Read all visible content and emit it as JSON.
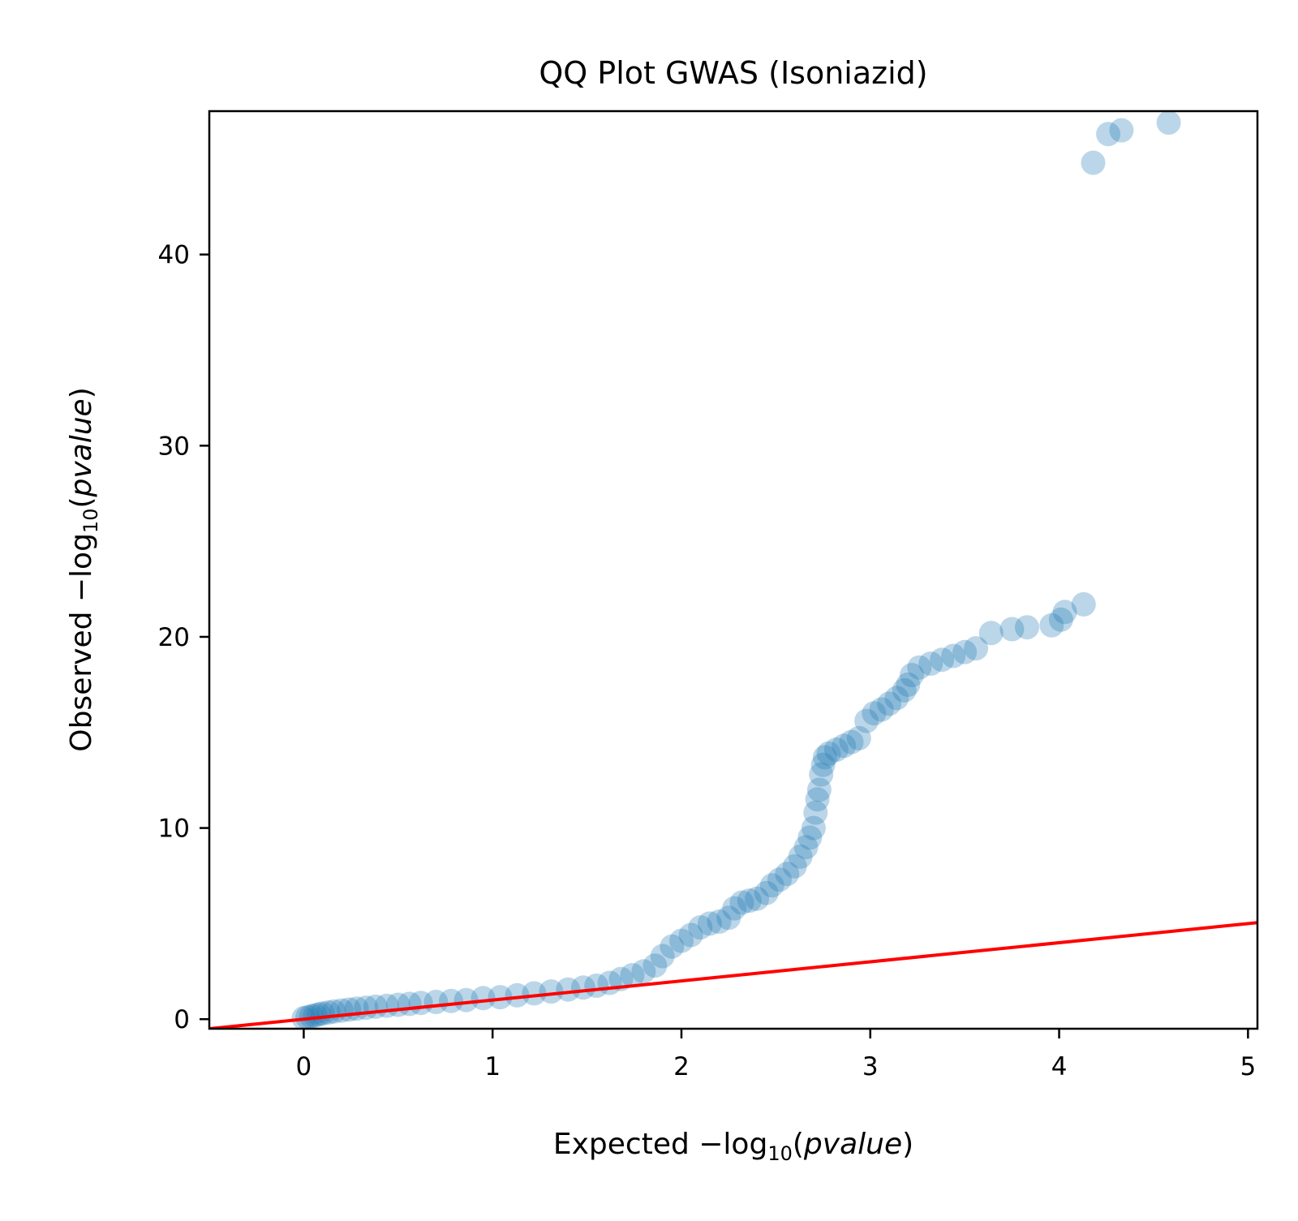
{
  "chart_data": {
    "type": "scatter",
    "title": "QQ Plot GWAS (Isoniazid)",
    "xlabel": {
      "prefix": "Expected −log",
      "subscript": "10",
      "paren_open": "(",
      "var": "pvalue",
      "paren_close": ")"
    },
    "ylabel": {
      "prefix": "Observed −log",
      "subscript": "10",
      "paren_open": "(",
      "var": "pvalue",
      "paren_close": ")"
    },
    "xlim": [
      -0.5,
      5.05
    ],
    "ylim": [
      -0.5,
      47.5
    ],
    "x_ticks": [
      0,
      1,
      2,
      3,
      4,
      5
    ],
    "x_tick_labels": [
      "0",
      "1",
      "2",
      "3",
      "4",
      "5"
    ],
    "y_ticks": [
      0,
      10,
      20,
      30,
      40
    ],
    "y_tick_labels": [
      "0",
      "10",
      "20",
      "30",
      "40"
    ],
    "grid": false,
    "legend": "none",
    "colors": {
      "points": "#1f77b4",
      "reference_line": "#ff0000",
      "axes": "#000000"
    },
    "reference_line": {
      "type": "y=x",
      "x": [
        -0.5,
        5.05
      ],
      "y": [
        -0.5,
        5.05
      ]
    },
    "point_alpha": 0.3,
    "series": [
      {
        "x": [
          0.0,
          0.02,
          0.04,
          0.06,
          0.08,
          0.1,
          0.13,
          0.16,
          0.2,
          0.24,
          0.28,
          0.33,
          0.38,
          0.44,
          0.5,
          0.56,
          0.62,
          0.7,
          0.78,
          0.86,
          0.95,
          1.04,
          1.13,
          1.22,
          1.31,
          1.4,
          1.48,
          1.55,
          1.62,
          1.68,
          1.74,
          1.8,
          1.86,
          1.9,
          1.95,
          2.0,
          2.05,
          2.1,
          2.15,
          2.2,
          2.25,
          2.28,
          2.32,
          2.36,
          2.4,
          2.45,
          2.48,
          2.52,
          2.56,
          2.6,
          2.63,
          2.66,
          2.68,
          2.7,
          2.71,
          2.72,
          2.73,
          2.74,
          2.75,
          2.76,
          2.78,
          2.82,
          2.86,
          2.9,
          2.94,
          2.98,
          3.02,
          3.06,
          3.1,
          3.14,
          3.18,
          3.2,
          3.22,
          3.26,
          3.32,
          3.38,
          3.44,
          3.5,
          3.56,
          3.64,
          3.75,
          3.83,
          3.96,
          4.01,
          4.03,
          4.13,
          4.18,
          4.26,
          4.33,
          4.58
        ],
        "y": [
          0.05,
          0.1,
          0.15,
          0.2,
          0.25,
          0.3,
          0.35,
          0.4,
          0.45,
          0.5,
          0.55,
          0.6,
          0.65,
          0.7,
          0.75,
          0.8,
          0.85,
          0.9,
          0.95,
          1.0,
          1.1,
          1.15,
          1.25,
          1.35,
          1.45,
          1.55,
          1.65,
          1.75,
          1.9,
          2.1,
          2.3,
          2.5,
          2.8,
          3.3,
          3.8,
          4.1,
          4.4,
          4.8,
          5.0,
          5.1,
          5.3,
          5.8,
          6.1,
          6.2,
          6.3,
          6.6,
          7.0,
          7.3,
          7.6,
          8.0,
          8.5,
          9.0,
          9.5,
          10.0,
          10.8,
          11.5,
          12.0,
          12.8,
          13.3,
          13.7,
          13.9,
          14.1,
          14.3,
          14.5,
          14.7,
          15.6,
          16.0,
          16.2,
          16.5,
          16.8,
          17.2,
          17.5,
          18.0,
          18.4,
          18.6,
          18.8,
          19.0,
          19.2,
          19.4,
          20.2,
          20.4,
          20.5,
          20.6,
          20.9,
          21.3,
          21.7,
          44.8,
          46.3,
          46.5,
          46.9
        ]
      }
    ]
  }
}
